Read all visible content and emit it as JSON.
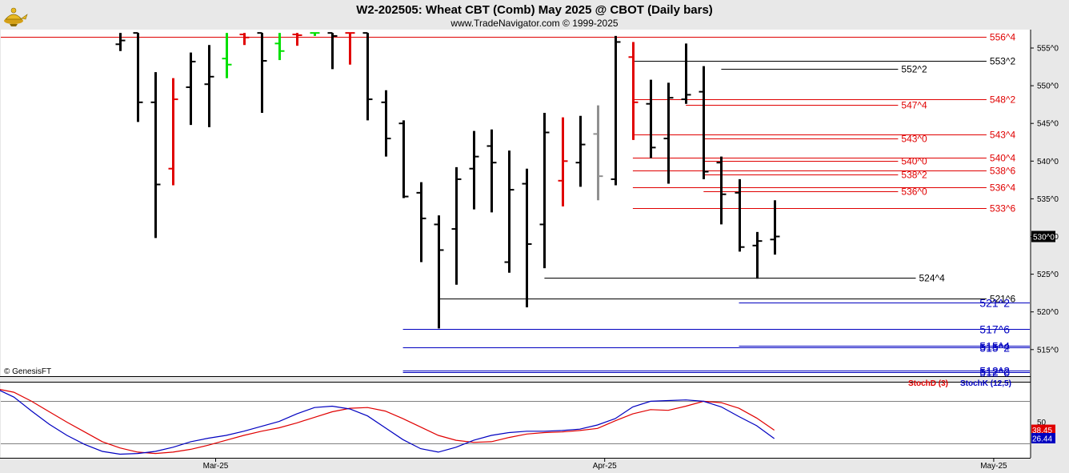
{
  "header": {
    "title": "W2-202505:  Wheat CBT (Comb) May 2025 @ CBOT  (Daily bars)",
    "subtitle": "www.TradeNavigator.com © 1999-2025",
    "logo_icon": "genie-lamp-icon"
  },
  "copyright": "© GenesisFT",
  "colors": {
    "background": "#ffffff",
    "frame": "#e8e8e8",
    "bar_black": "#000000",
    "bar_red": "#e00000",
    "bar_green": "#00e000",
    "bar_gray": "#909090",
    "level_red": "#e00000",
    "level_black": "#000000",
    "level_blue": "#0000c0",
    "stoch_d": "#e00000",
    "stoch_k": "#0000c0"
  },
  "chart_data": [
    {
      "type": "ohlc",
      "title": "W2-202505:  Wheat CBT (Comb) May 2025 @ CBOT  (Daily bars)",
      "ylim": [
        510,
        557
      ],
      "yticks": [
        "515^0",
        "520^0",
        "525^0",
        "530^0",
        "535^0",
        "540^0",
        "545^0",
        "550^0",
        "555^0"
      ],
      "ytick_values": [
        515,
        520,
        525,
        530,
        535,
        540,
        545,
        550,
        555
      ],
      "last_price": {
        "label": "530^0",
        "value": 530.0
      },
      "xticks": [
        "Mar-25",
        "Apr-25",
        "May-25"
      ],
      "xtick_days": [
        5,
        27,
        49
      ],
      "bars": [
        {
          "d": 0,
          "h": 557.0,
          "l": 554.6,
          "o": 555.5,
          "c": 556.0,
          "color": "black"
        },
        {
          "d": 1,
          "h": 557.0,
          "l": 545.2,
          "o": 557.0,
          "c": 547.8,
          "color": "black"
        },
        {
          "d": 2,
          "h": 551.8,
          "l": 529.8,
          "o": 547.8,
          "c": 536.9,
          "color": "black"
        },
        {
          "d": 3,
          "h": 551.0,
          "l": 536.8,
          "o": 539.0,
          "c": 548.2,
          "color": "red"
        },
        {
          "d": 4,
          "h": 554.4,
          "l": 544.8,
          "o": 549.8,
          "c": 553.2,
          "color": "black"
        },
        {
          "d": 5,
          "h": 555.4,
          "l": 544.5,
          "o": 550.2,
          "c": 551.2,
          "color": "black"
        },
        {
          "d": 6,
          "h": 557.0,
          "l": 551.0,
          "o": 553.6,
          "c": 552.8,
          "color": "green"
        },
        {
          "d": 7,
          "h": 557.0,
          "l": 555.4,
          "o": 556.8,
          "c": 556.4,
          "color": "red"
        },
        {
          "d": 8,
          "h": 557.0,
          "l": 546.4,
          "o": 557.0,
          "c": 553.3,
          "color": "black"
        },
        {
          "d": 9,
          "h": 557.0,
          "l": 553.4,
          "o": 555.6,
          "c": 554.6,
          "color": "green"
        },
        {
          "d": 10,
          "h": 557.0,
          "l": 555.3,
          "o": 556.8,
          "c": 556.7,
          "color": "red"
        },
        {
          "d": 11,
          "h": 557.0,
          "l": 556.6,
          "o": 557.0,
          "c": 557.0,
          "color": "green"
        },
        {
          "d": 12,
          "h": 557.0,
          "l": 552.2,
          "o": 557.0,
          "c": 556.6,
          "color": "black"
        },
        {
          "d": 13,
          "h": 557.0,
          "l": 552.8,
          "o": 557.0,
          "c": 557.0,
          "color": "red"
        },
        {
          "d": 14,
          "h": 557.0,
          "l": 545.4,
          "o": 557.0,
          "c": 548.2,
          "color": "black"
        },
        {
          "d": 15,
          "h": 549.4,
          "l": 540.6,
          "o": 547.8,
          "c": 543.0,
          "color": "black"
        },
        {
          "d": 16,
          "h": 545.4,
          "l": 535.1,
          "o": 545.0,
          "c": 535.3,
          "color": "black"
        },
        {
          "d": 17,
          "h": 537.2,
          "l": 526.6,
          "o": 535.8,
          "c": 532.4,
          "color": "black"
        },
        {
          "d": 18,
          "h": 532.8,
          "l": 517.8,
          "o": 531.6,
          "c": 528.2,
          "color": "black"
        },
        {
          "d": 19,
          "h": 539.2,
          "l": 523.6,
          "o": 531.0,
          "c": 537.6,
          "color": "black"
        },
        {
          "d": 20,
          "h": 544.0,
          "l": 533.6,
          "o": 539.0,
          "c": 540.6,
          "color": "black"
        },
        {
          "d": 21,
          "h": 544.2,
          "l": 533.2,
          "o": 542.0,
          "c": 539.8,
          "color": "black"
        },
        {
          "d": 22,
          "h": 541.4,
          "l": 525.2,
          "o": 526.6,
          "c": 536.2,
          "color": "black"
        },
        {
          "d": 23,
          "h": 539.0,
          "l": 520.6,
          "o": 537.0,
          "c": 529.0,
          "color": "black"
        },
        {
          "d": 24,
          "h": 546.4,
          "l": 525.8,
          "o": 531.6,
          "c": 543.8,
          "color": "black"
        },
        {
          "d": 25,
          "h": 545.8,
          "l": 534.0,
          "o": 537.4,
          "c": 540.0,
          "color": "red"
        },
        {
          "d": 26,
          "h": 546.0,
          "l": 536.6,
          "o": 539.8,
          "c": 542.2,
          "color": "black"
        },
        {
          "d": 27,
          "h": 547.4,
          "l": 534.8,
          "o": 543.6,
          "c": 538.0,
          "color": "gray"
        },
        {
          "d": 28,
          "h": 556.6,
          "l": 536.8,
          "o": 537.6,
          "c": 555.8,
          "color": "black"
        },
        {
          "d": 29,
          "h": 555.8,
          "l": 542.8,
          "o": 553.8,
          "c": 547.8,
          "color": "red"
        },
        {
          "d": 30,
          "h": 550.8,
          "l": 540.4,
          "o": 547.6,
          "c": 541.8,
          "color": "black"
        },
        {
          "d": 31,
          "h": 550.4,
          "l": 537.0,
          "o": 543.0,
          "c": 548.4,
          "color": "black"
        },
        {
          "d": 32,
          "h": 555.6,
          "l": 547.6,
          "o": 548.2,
          "c": 548.8,
          "color": "black"
        },
        {
          "d": 33,
          "h": 552.6,
          "l": 537.6,
          "o": 549.2,
          "c": 538.6,
          "color": "black"
        },
        {
          "d": 34,
          "h": 540.6,
          "l": 531.6,
          "o": 539.8,
          "c": 535.6,
          "color": "black"
        },
        {
          "d": 35,
          "h": 537.6,
          "l": 528.0,
          "o": 535.8,
          "c": 528.6,
          "color": "black"
        },
        {
          "d": 36,
          "h": 530.6,
          "l": 524.4,
          "o": 528.8,
          "c": 529.4,
          "color": "black"
        },
        {
          "d": 37,
          "h": 534.8,
          "l": 527.6,
          "o": 529.6,
          "c": 530.0,
          "color": "black"
        }
      ],
      "levels": [
        {
          "label": "556^4",
          "value": 556.5,
          "color": "red",
          "x_start_day": -8,
          "x_end_day": 49
        },
        {
          "label": "553^2",
          "value": 553.25,
          "color": "black",
          "x_start_day": 29,
          "x_end_day": 49
        },
        {
          "label": "552^2",
          "value": 552.25,
          "color": "black",
          "x_start_day": 34,
          "x_end_day": 44
        },
        {
          "label": "548^2",
          "value": 548.25,
          "color": "red",
          "x_start_day": 29,
          "x_end_day": 49
        },
        {
          "label": "547^4",
          "value": 547.5,
          "color": "red",
          "x_start_day": 32,
          "x_end_day": 44
        },
        {
          "label": "543^4",
          "value": 543.5,
          "color": "red",
          "x_start_day": 29,
          "x_end_day": 49
        },
        {
          "label": "543^0",
          "value": 543.0,
          "color": "red",
          "x_start_day": 33,
          "x_end_day": 44
        },
        {
          "label": "540^4",
          "value": 540.5,
          "color": "red",
          "x_start_day": 29,
          "x_end_day": 49
        },
        {
          "label": "540^0",
          "value": 540.0,
          "color": "red",
          "x_start_day": 33,
          "x_end_day": 44
        },
        {
          "label": "538^6",
          "value": 538.75,
          "color": "red",
          "x_start_day": 29,
          "x_end_day": 49
        },
        {
          "label": "538^2",
          "value": 538.25,
          "color": "red",
          "x_start_day": 33,
          "x_end_day": 44
        },
        {
          "label": "536^4",
          "value": 536.5,
          "color": "red",
          "x_start_day": 29,
          "x_end_day": 49
        },
        {
          "label": "536^0",
          "value": 536.0,
          "color": "red",
          "x_start_day": 33,
          "x_end_day": 44
        },
        {
          "label": "533^6",
          "value": 533.75,
          "color": "red",
          "x_start_day": 29,
          "x_end_day": 49
        },
        {
          "label": "524^4",
          "value": 524.5,
          "color": "black",
          "x_start_day": 24,
          "x_end_day": 45
        },
        {
          "label": "521^6",
          "value": 521.75,
          "color": "black",
          "x_start_day": 18,
          "x_end_day": 49
        },
        {
          "label": "521^2",
          "value": 521.25,
          "color": "blue",
          "x_start_day": 35,
          "x_end_day": 61
        },
        {
          "label": "517^6",
          "value": 517.75,
          "color": "blue",
          "x_start_day": 16,
          "x_end_day": 61
        },
        {
          "label": "515^4",
          "value": 515.5,
          "color": "blue",
          "x_start_day": 35,
          "x_end_day": 61
        },
        {
          "label": "515^2",
          "value": 515.25,
          "color": "blue",
          "x_start_day": 16,
          "x_end_day": 61
        },
        {
          "label": "512^2",
          "value": 512.25,
          "color": "blue",
          "x_start_day": 16,
          "x_end_day": 61
        },
        {
          "label": "512^0",
          "value": 512.0,
          "color": "blue",
          "x_start_day": 16,
          "x_end_day": 61
        }
      ]
    },
    {
      "type": "line",
      "title": "",
      "ylim": [
        0,
        100
      ],
      "reference_lines": [
        20,
        80
      ],
      "ytick_label": "50",
      "ytick_value": 50,
      "series": [
        {
          "name": "StochD (3)",
          "color": "red",
          "last_label": "38.45",
          "x": [
            -7,
            -6,
            -5,
            -4,
            -3,
            -2,
            -1,
            0,
            1,
            2,
            3,
            4,
            5,
            6,
            7,
            8,
            9,
            10,
            11,
            12,
            13,
            14,
            15,
            16,
            17,
            18,
            19,
            20,
            21,
            22,
            23,
            24,
            25,
            26,
            27,
            28,
            29,
            30,
            31,
            32,
            33,
            34,
            35,
            36,
            37
          ],
          "y": [
            98,
            93,
            80,
            65,
            50,
            36,
            22,
            13,
            7,
            5,
            7,
            11,
            17,
            24,
            31,
            37,
            42,
            49,
            57,
            65,
            70,
            71,
            66,
            55,
            43,
            31,
            24,
            21,
            22,
            28,
            33,
            35,
            36,
            38,
            41,
            52,
            62,
            68,
            67,
            73,
            80,
            78,
            70,
            56,
            38.45
          ]
        },
        {
          "name": "StochK (12,5)",
          "color": "blue",
          "last_label": "26.44",
          "x": [
            -7,
            -6,
            -5,
            -4,
            -3,
            -2,
            -1,
            0,
            1,
            2,
            3,
            4,
            5,
            6,
            7,
            8,
            9,
            10,
            11,
            12,
            13,
            14,
            15,
            16,
            17,
            18,
            19,
            20,
            21,
            22,
            23,
            24,
            25,
            26,
            27,
            28,
            29,
            30,
            31,
            32,
            33,
            34,
            35,
            36,
            37
          ],
          "y": [
            98,
            86,
            66,
            47,
            31,
            18,
            8,
            4,
            5,
            8,
            14,
            22,
            27,
            31,
            37,
            44,
            51,
            62,
            71,
            73,
            69,
            59,
            42,
            25,
            12,
            7,
            14,
            24,
            31,
            35,
            37,
            37,
            38,
            40,
            46,
            55,
            72,
            80,
            81,
            82,
            80,
            72,
            58,
            45,
            26.44
          ]
        }
      ],
      "xticks": [
        "Mar-25",
        "Apr-25",
        "May-25"
      ],
      "legend": [
        "StochD (3)",
        "StochK (12,5)"
      ]
    }
  ]
}
